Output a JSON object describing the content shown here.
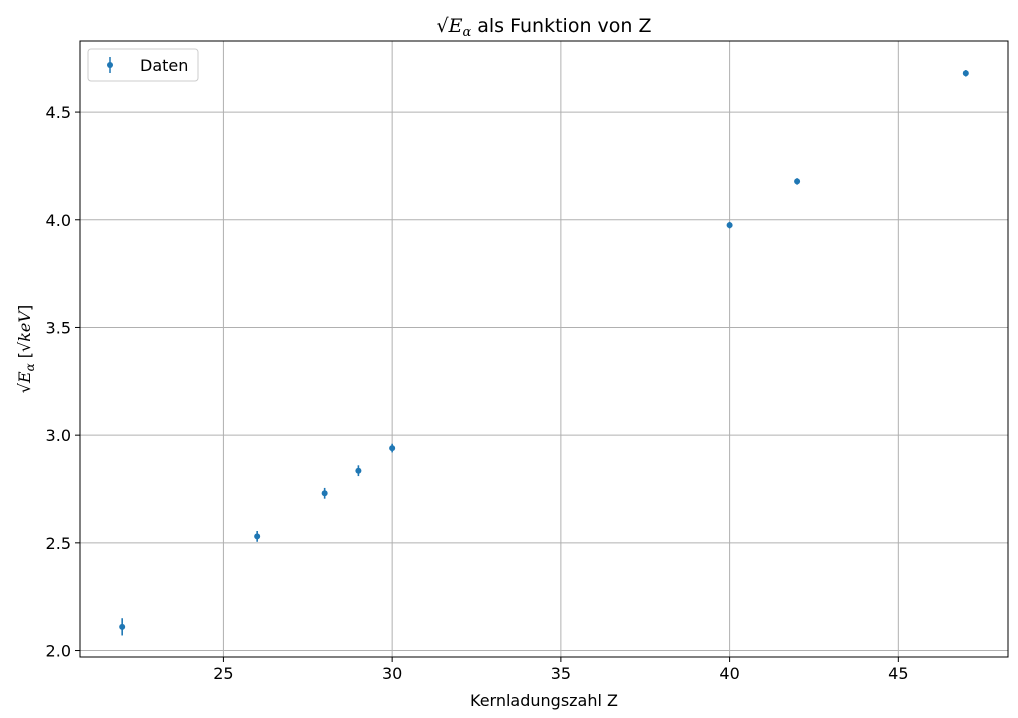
{
  "chart_data": {
    "type": "scatter",
    "title": {
      "sqrt_symbol": "√",
      "symbol": "E",
      "subscript": "α",
      "text": "als Funktion von Z"
    },
    "xlabel": "Kernladungszahl Z",
    "ylabel": {
      "sqrt_symbol": "√",
      "symbol": "E",
      "subscript": "α",
      "unit_open": "[",
      "unit_sqrt": "√",
      "unit": "keV",
      "unit_close": "]"
    },
    "xlim": [
      20.75,
      48.25
    ],
    "ylim": [
      1.97,
      4.83
    ],
    "x_ticks": [
      25,
      30,
      35,
      40,
      45
    ],
    "x_tick_labels": [
      "25",
      "30",
      "35",
      "40",
      "45"
    ],
    "y_ticks": [
      2.0,
      2.5,
      3.0,
      3.5,
      4.0,
      4.5
    ],
    "y_tick_labels": [
      "2.0",
      "2.5",
      "3.0",
      "3.5",
      "4.0",
      "4.5"
    ],
    "grid": true,
    "legend_position": "top-left",
    "color": "#1f77b4",
    "series": [
      {
        "name": "Daten",
        "x": [
          22,
          26,
          28,
          29,
          30,
          40,
          42,
          47
        ],
        "y": [
          2.11,
          2.53,
          2.73,
          2.835,
          2.94,
          3.975,
          4.178,
          4.68
        ],
        "yerr": [
          0.04,
          0.025,
          0.025,
          0.025,
          0.02,
          0.015,
          0.015,
          0.015
        ]
      }
    ]
  }
}
